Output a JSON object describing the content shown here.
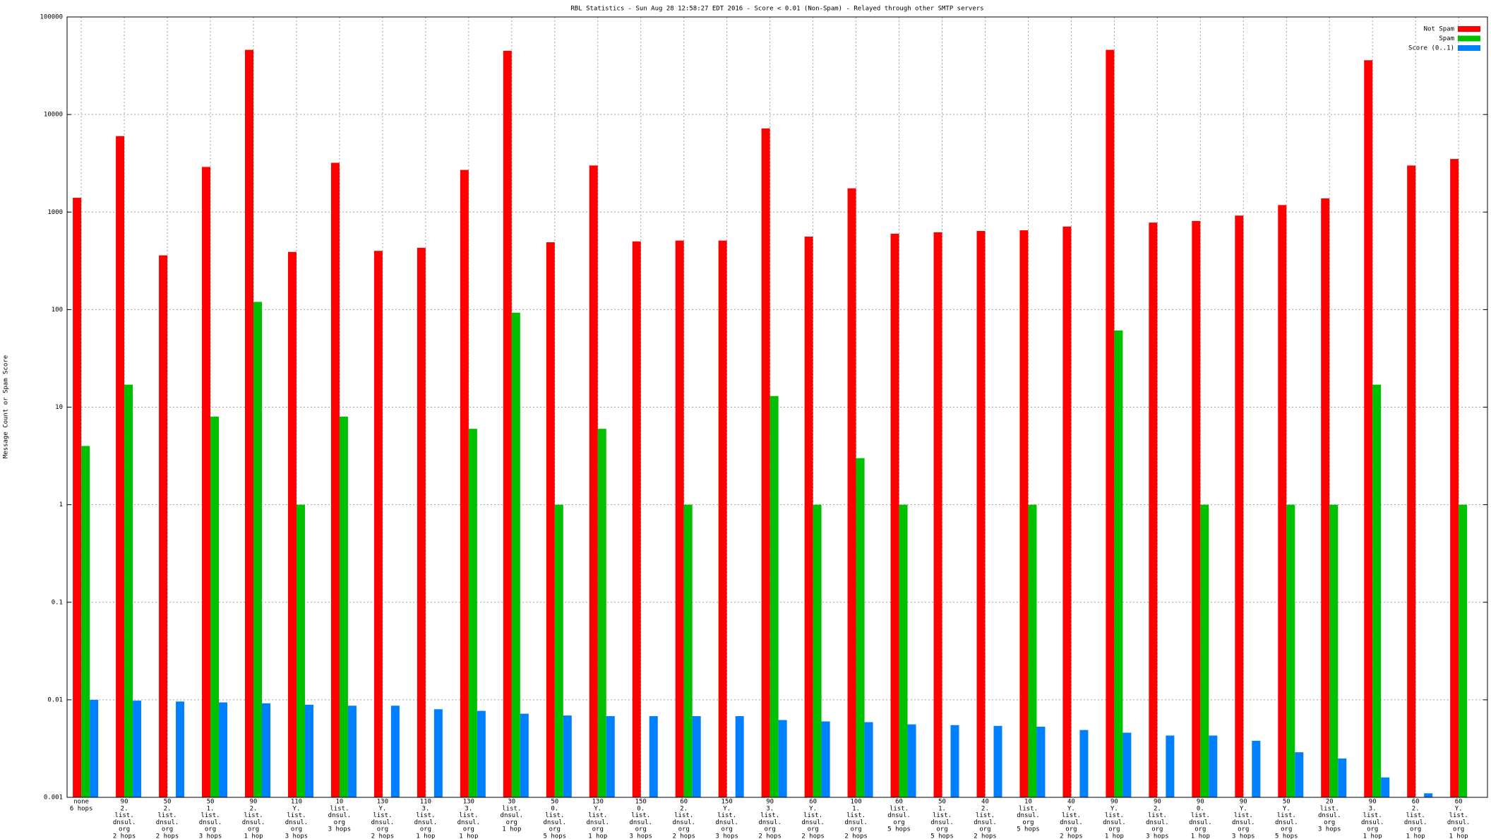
{
  "chart_data": {
    "type": "bar",
    "title": "RBL Statistics - Sun Aug 28 12:58:27 EDT 2016 - Score < 0.01 (Non-Spam) - Relayed through other SMTP servers",
    "y_label": "Message Count or Spam Score",
    "log_y": true,
    "grid": true,
    "legend_position": "top-right",
    "ylim": [
      0.001,
      100000
    ],
    "yticks": [
      0.001,
      0.01,
      0.1,
      1,
      10,
      100,
      1000,
      10000,
      100000
    ],
    "categories": [
      [
        "none",
        "6 hops"
      ],
      [
        "90",
        "2.",
        "list.",
        "dnsul.",
        "org",
        "2 hops"
      ],
      [
        "50",
        "2.",
        "list.",
        "dnsul.",
        "org",
        "2 hops"
      ],
      [
        "50",
        "1.",
        "list.",
        "dnsul.",
        "org",
        "3 hops"
      ],
      [
        "90",
        "2.",
        "list.",
        "dnsul.",
        "org",
        "1 hop"
      ],
      [
        "110",
        "Y.",
        "list.",
        "dnsul.",
        "org",
        "3 hops"
      ],
      [
        "10",
        "list.",
        "dnsul.",
        "org",
        "3 hops"
      ],
      [
        "130",
        "Y.",
        "list.",
        "dnsul.",
        "org",
        "2 hops"
      ],
      [
        "110",
        "3.",
        "list.",
        "dnsul.",
        "org",
        "1 hop"
      ],
      [
        "130",
        "3.",
        "list.",
        "dnsul.",
        "org",
        "1 hop"
      ],
      [
        "30",
        "list.",
        "dnsul.",
        "org",
        "1 hop"
      ],
      [
        "50",
        "0.",
        "list.",
        "dnsul.",
        "org",
        "5 hops"
      ],
      [
        "130",
        "Y.",
        "list.",
        "dnsul.",
        "org",
        "1 hop"
      ],
      [
        "150",
        "0.",
        "list.",
        "dnsul.",
        "org",
        "3 hops"
      ],
      [
        "60",
        "2.",
        "list.",
        "dnsul.",
        "org",
        "2 hops"
      ],
      [
        "150",
        "Y.",
        "list.",
        "dnsul.",
        "org",
        "3 hops"
      ],
      [
        "90",
        "3.",
        "list.",
        "dnsul.",
        "org",
        "2 hops"
      ],
      [
        "60",
        "Y.",
        "list.",
        "dnsul.",
        "org",
        "2 hops"
      ],
      [
        "100",
        "1.",
        "list.",
        "dnsul.",
        "org",
        "2 hops"
      ],
      [
        "60",
        "list.",
        "dnsul.",
        "org",
        "5 hops"
      ],
      [
        "50",
        "1.",
        "list.",
        "dnsul.",
        "org",
        "5 hops"
      ],
      [
        "40",
        "2.",
        "list.",
        "dnsul.",
        "org",
        "2 hops"
      ],
      [
        "10",
        "list.",
        "dnsul.",
        "org",
        "5 hops"
      ],
      [
        "40",
        "Y.",
        "list.",
        "dnsul.",
        "org",
        "2 hops"
      ],
      [
        "90",
        "Y.",
        "list.",
        "dnsul.",
        "org",
        "1 hop"
      ],
      [
        "90",
        "2.",
        "list.",
        "dnsul.",
        "org",
        "3 hops"
      ],
      [
        "90",
        "0.",
        "list.",
        "dnsul.",
        "org",
        "1 hop"
      ],
      [
        "90",
        "Y.",
        "list.",
        "dnsul.",
        "org",
        "3 hops"
      ],
      [
        "50",
        "Y.",
        "list.",
        "dnsul.",
        "org",
        "5 hops"
      ],
      [
        "20",
        "list.",
        "dnsul.",
        "org",
        "3 hops"
      ],
      [
        "90",
        "3.",
        "list.",
        "dnsul.",
        "org",
        "1 hop"
      ],
      [
        "60",
        "2.",
        "list.",
        "dnsul.",
        "org",
        "1 hop"
      ],
      [
        "60",
        "Y.",
        "list.",
        "dnsul.",
        "org",
        "1 hop"
      ]
    ],
    "series": [
      {
        "name": "Not Spam",
        "color": "#ff0000",
        "values": [
          1400,
          6000,
          360,
          2900,
          46000,
          390,
          3200,
          400,
          430,
          2700,
          45000,
          490,
          3000,
          500,
          510,
          510,
          7200,
          560,
          1750,
          600,
          620,
          640,
          650,
          710,
          46000,
          780,
          810,
          920,
          1180,
          1380,
          36000,
          3000,
          3500
        ]
      },
      {
        "name": "Spam",
        "color": "#00c000",
        "values": [
          4,
          17,
          null,
          8,
          120,
          1,
          8,
          null,
          null,
          6,
          93,
          1,
          6,
          null,
          1,
          null,
          13,
          1,
          3,
          1,
          null,
          null,
          1,
          null,
          61,
          null,
          1,
          null,
          1,
          1,
          17,
          null,
          1
        ]
      },
      {
        "name": "Score (0..1)",
        "color": "#0080ff",
        "values": [
          0.01,
          0.0098,
          0.0096,
          0.0094,
          0.0092,
          0.0089,
          0.0087,
          0.0087,
          0.008,
          0.0077,
          0.0072,
          0.0069,
          0.0068,
          0.0068,
          0.0068,
          0.0068,
          0.0062,
          0.006,
          0.0059,
          0.0056,
          0.0055,
          0.0054,
          0.0053,
          0.0049,
          0.0046,
          0.0043,
          0.0043,
          0.0038,
          0.0029,
          0.0025,
          0.0016,
          0.0011,
          0.001
        ]
      }
    ]
  }
}
